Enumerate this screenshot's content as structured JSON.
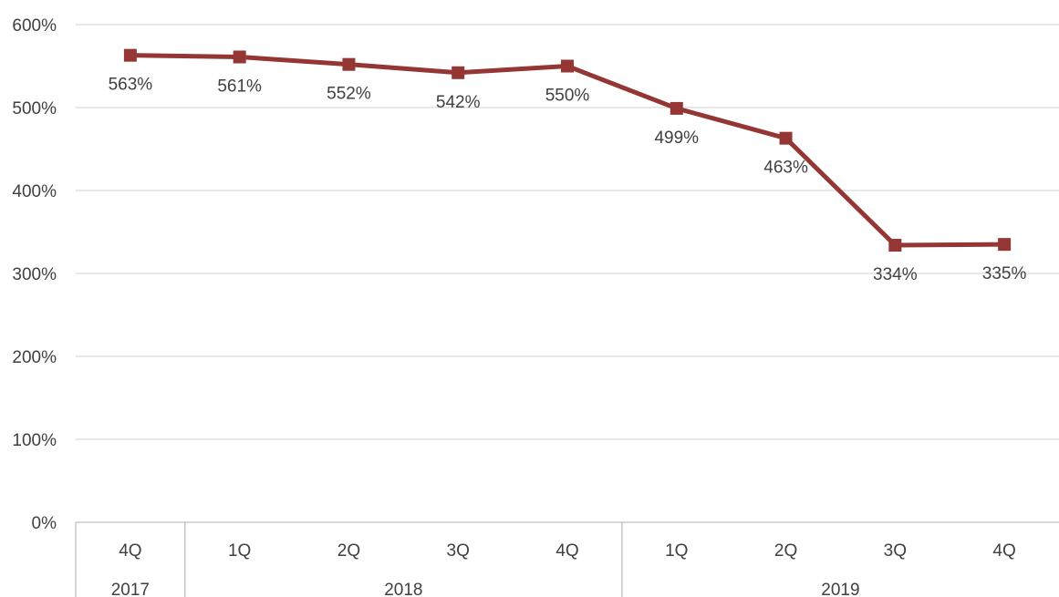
{
  "chart_data": {
    "type": "line",
    "quarters": [
      "4Q",
      "1Q",
      "2Q",
      "3Q",
      "4Q",
      "1Q",
      "2Q",
      "3Q",
      "4Q"
    ],
    "year_groups": [
      {
        "label": "2017",
        "span": 1
      },
      {
        "label": "2018",
        "span": 4
      },
      {
        "label": "2019",
        "span": 4
      }
    ],
    "series": [
      {
        "values": [
          563,
          561,
          552,
          542,
          550,
          499,
          463,
          334,
          335
        ],
        "labels": [
          "563%",
          "561%",
          "552%",
          "542%",
          "550%",
          "499%",
          "463%",
          "334%",
          "335%"
        ],
        "color": "#943634",
        "marker": "square"
      }
    ],
    "y_ticks": [
      "0%",
      "100%",
      "200%",
      "300%",
      "400%",
      "500%",
      "600%"
    ],
    "ylim": [
      0,
      600
    ],
    "grid": true,
    "legend": "none"
  }
}
